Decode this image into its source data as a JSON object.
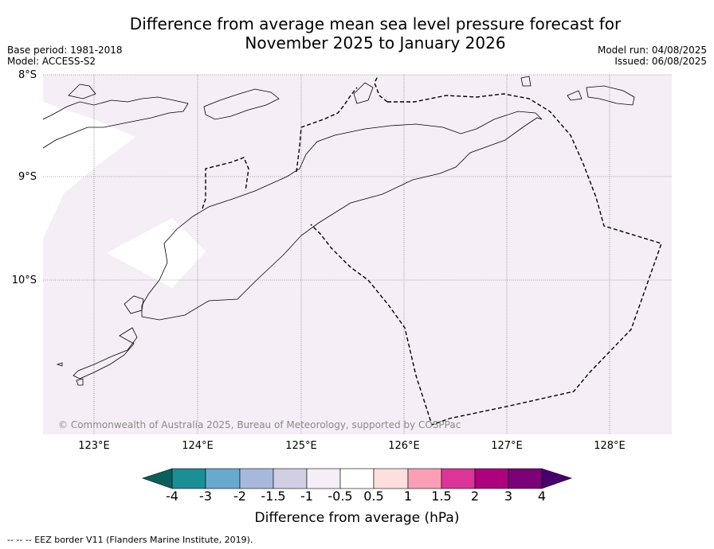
{
  "header": {
    "title_line1": "Difference from average mean sea level pressure forecast for",
    "title_line2": "November 2025 to January 2026",
    "base_period": "Base period: 1981-2018",
    "model": "Model: ACCESS-S2",
    "model_run": "Model run: 04/08/2025",
    "issued": "Issued: 06/08/2025"
  },
  "map": {
    "lat_labels": [
      "8°S",
      "9°S",
      "10°S"
    ],
    "lon_labels": [
      "123°E",
      "124°E",
      "125°E",
      "126°E",
      "127°E",
      "128°E"
    ],
    "background_color": "#f5eef6",
    "copyright": "© Commonwealth of Australia 2025, Bureau of Meteorology, supported by COSPPac"
  },
  "colorbar": {
    "label": "Difference from average (hPa)",
    "ticks": [
      "-4",
      "-3",
      "-2",
      "-1.5",
      "-1",
      "-0.5",
      "0.5",
      "1",
      "1.5",
      "2",
      "3",
      "4"
    ],
    "low_extend_color": "#0b5f5a",
    "colors": [
      "#1b8f96",
      "#68a9cf",
      "#a6b8db",
      "#d1cfe4",
      "#f5eef6",
      "#ffffff",
      "#fde0dd",
      "#fa9fb5",
      "#dd3497",
      "#ae017e",
      "#7a0177"
    ],
    "high_extend_color": "#49006a"
  },
  "footnote": "--  --  -- EEZ border V11 (Flanders Marine Institute, 2019)."
}
